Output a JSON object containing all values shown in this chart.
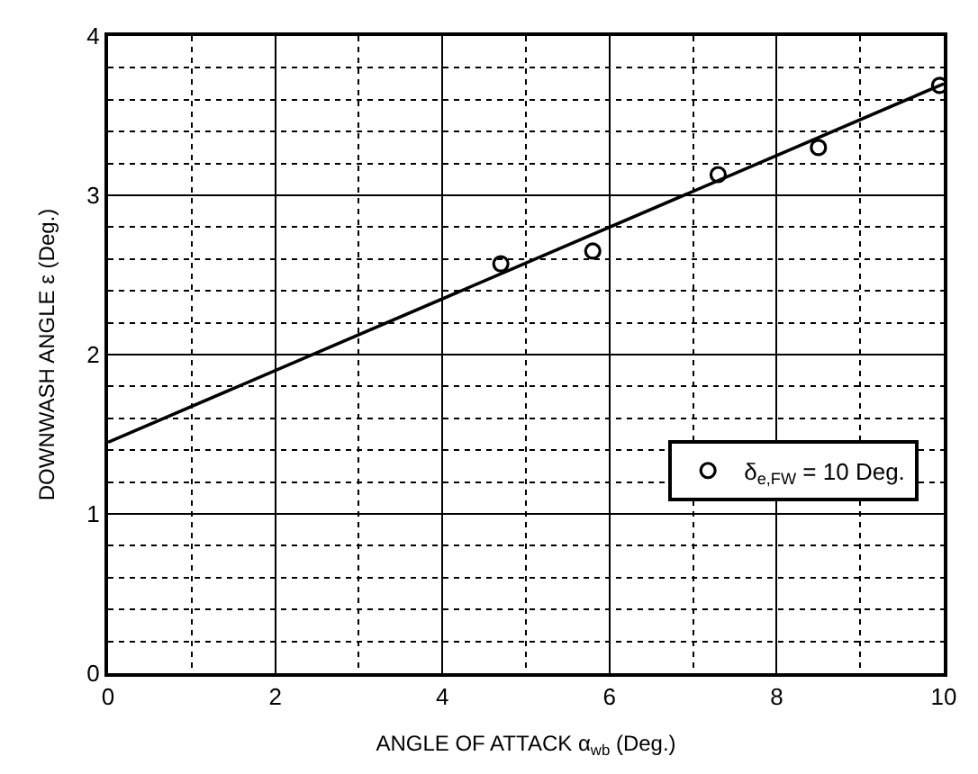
{
  "chart_data": {
    "type": "scatter",
    "xlabel": "ANGLE OF ATTACK α$_{wb}$ (Deg.)",
    "ylabel": "DOWNWASH ANGLE ε (Deg.)",
    "xlim": [
      0,
      10
    ],
    "xticks": [
      0,
      2,
      4,
      6,
      8,
      10
    ],
    "ylim": [
      0,
      4
    ],
    "yticks": [
      0,
      1,
      2,
      3,
      4
    ],
    "grid": true,
    "legend": "bottom right",
    "series": [
      {
        "name": "δ$_{e,FW}$ = 10 Deg.",
        "color": "#000000",
        "marker": "circle",
        "x": [
          4.7,
          5.8,
          7.3,
          8.5,
          9.95
        ],
        "values": [
          2.57,
          2.65,
          3.13,
          3.3,
          3.69
        ]
      },
      {
        "color": "#000000",
        "type": "line",
        "marker": "none",
        "x": [
          0,
          10
        ],
        "values": [
          1.45,
          3.7
        ]
      }
    ]
  }
}
